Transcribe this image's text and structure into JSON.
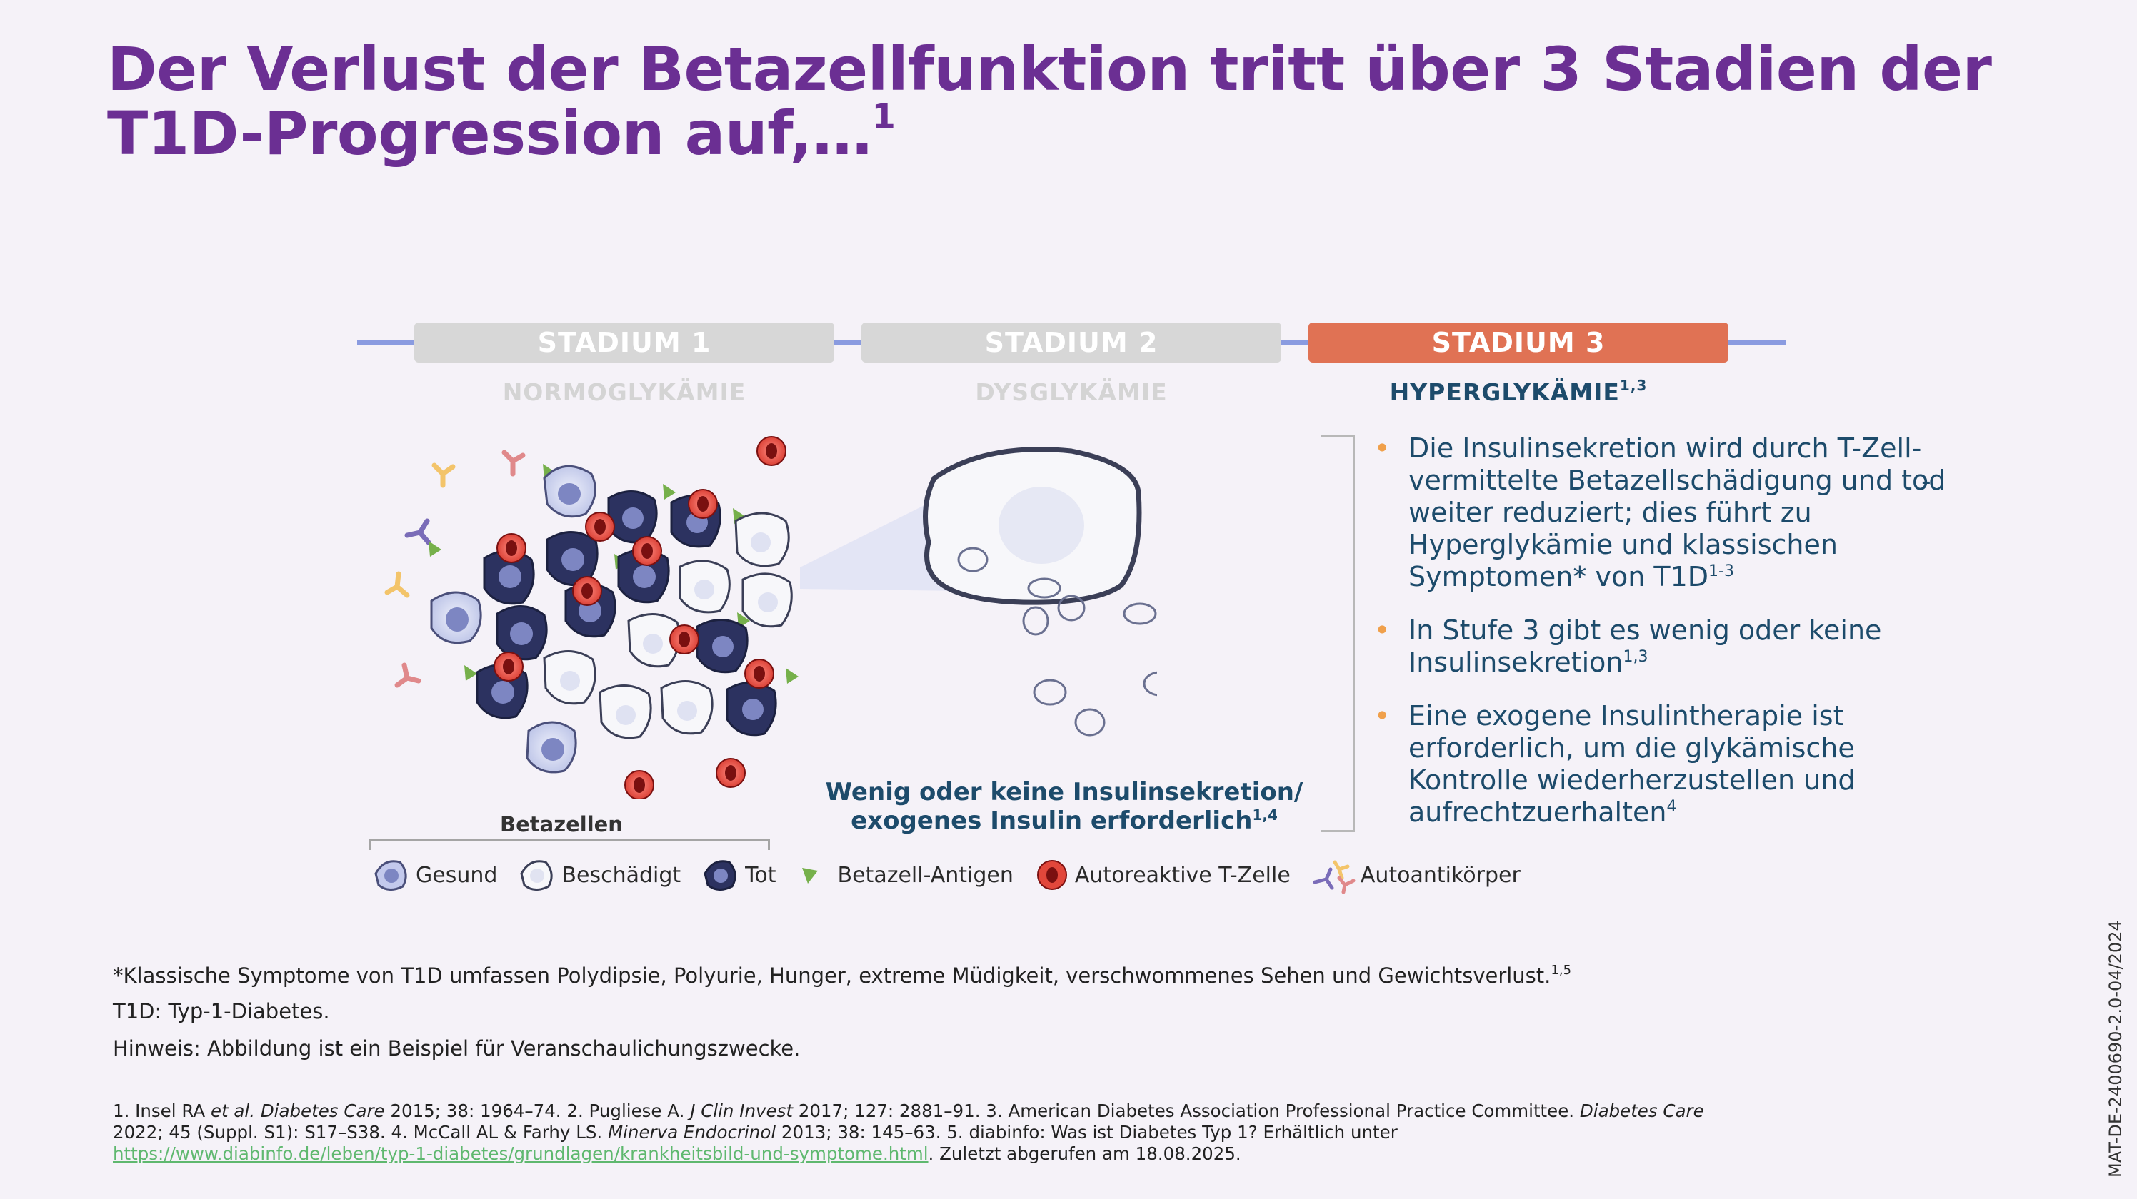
{
  "title": {
    "text": "Der Verlust der Betazellfunktion tritt über 3 Stadien der T1D-Progression auf,…",
    "ref": "1"
  },
  "stages": [
    {
      "label": "STADIUM 1",
      "subtitle": "NORMOGLYKÄMIE",
      "subtitle_ref": "",
      "state": "inactive"
    },
    {
      "label": "STADIUM 2",
      "subtitle": "DYSGLYKÄMIE",
      "subtitle_ref": "",
      "state": "inactive"
    },
    {
      "label": "STADIUM 3",
      "subtitle": "HYPERGLYKÄMIE",
      "subtitle_ref": "1,3",
      "state": "active"
    }
  ],
  "bullets": [
    {
      "text": "Die Insulinsekretion wird durch T-Zell-vermittelte Betazellschädigung und tod weiter reduziert; dies führt zu Hyperglykämie und klassischen Symptomen* von T1D",
      "ref": "1-3"
    },
    {
      "text": "In Stufe 3 gibt es wenig oder keine Insulinsekretion",
      "ref": "1,3"
    },
    {
      "text": "Eine exogene Insulintherapie ist erforderlich, um die glykämische Kontrolle wiederherzustellen und aufrechtzuerhalten",
      "ref": "4"
    }
  ],
  "dash_mark": "-",
  "illustration": {
    "betazellen_label": "Betazellen",
    "insulin_caption_line1": "Wenig oder keine Insulinsekretion/",
    "insulin_caption_line2": "exogenes Insulin erforderlich",
    "insulin_caption_ref": "1,4"
  },
  "legend": [
    {
      "label": "Gesund",
      "icon": "healthy-cell-icon"
    },
    {
      "label": "Beschädigt",
      "icon": "damaged-cell-icon"
    },
    {
      "label": "Tot",
      "icon": "dead-cell-icon"
    },
    {
      "label": "Betazell-Antigen",
      "icon": "antigen-icon"
    },
    {
      "label": "Autoreaktive T-Zelle",
      "icon": "t-cell-icon"
    },
    {
      "label": "Autoantikörper",
      "icon": "autoantibody-icon"
    }
  ],
  "footnotes": {
    "symptoms": "*Klassische Symptome von T1D umfassen Polydipsie, Polyurie, Hunger, extreme Müdigkeit, verschwommenes Sehen und Gewichtsverlust.",
    "symptoms_ref": "1,5",
    "abbreviation": "T1D: Typ-1-Diabetes.",
    "note": "Hinweis: Abbildung ist ein Beispiel für Veranschaulichungszwecke."
  },
  "references": {
    "r1_a": "1. Insel RA ",
    "r1_b": "et al.",
    "r1_c": " ",
    "r1_journal": "Diabetes Care",
    "r1_d": " 2015; 38: 1964–74. 2. Pugliese A. ",
    "r2_journal": "J Clin Invest",
    "r2_d": " 2017; 127: 2881–91. 3. American Diabetes Association Professional Practice Committee. ",
    "r3_journal": "Diabetes Care",
    "r3_d": " 2022; 45 (Suppl. S1): S17–S38. 4. McCall AL & Farhy LS. ",
    "r4_journal": "Minerva Endocrinol",
    "r4_d": " 2013; 38: 145–63. 5. diabinfo: Was ist Diabetes Typ 1? Erhältlich unter",
    "link": "https://www.diabinfo.de/leben/typ-1-diabetes/grundlagen/krankheitsbild-und-symptome.html",
    "tail": ". Zuletzt abgerufen am 18.08.2025."
  },
  "document_code": "MAT-DE-2400690-2.0-04/2024",
  "colors": {
    "title": "#6b2f93",
    "stage_active": "#e07254",
    "stage_inactive": "#d7d7d7",
    "timeline": "#8a9be0",
    "body_text": "#1d4b6b",
    "bullet_dot": "#f0a04b",
    "link": "#5fb86f"
  }
}
